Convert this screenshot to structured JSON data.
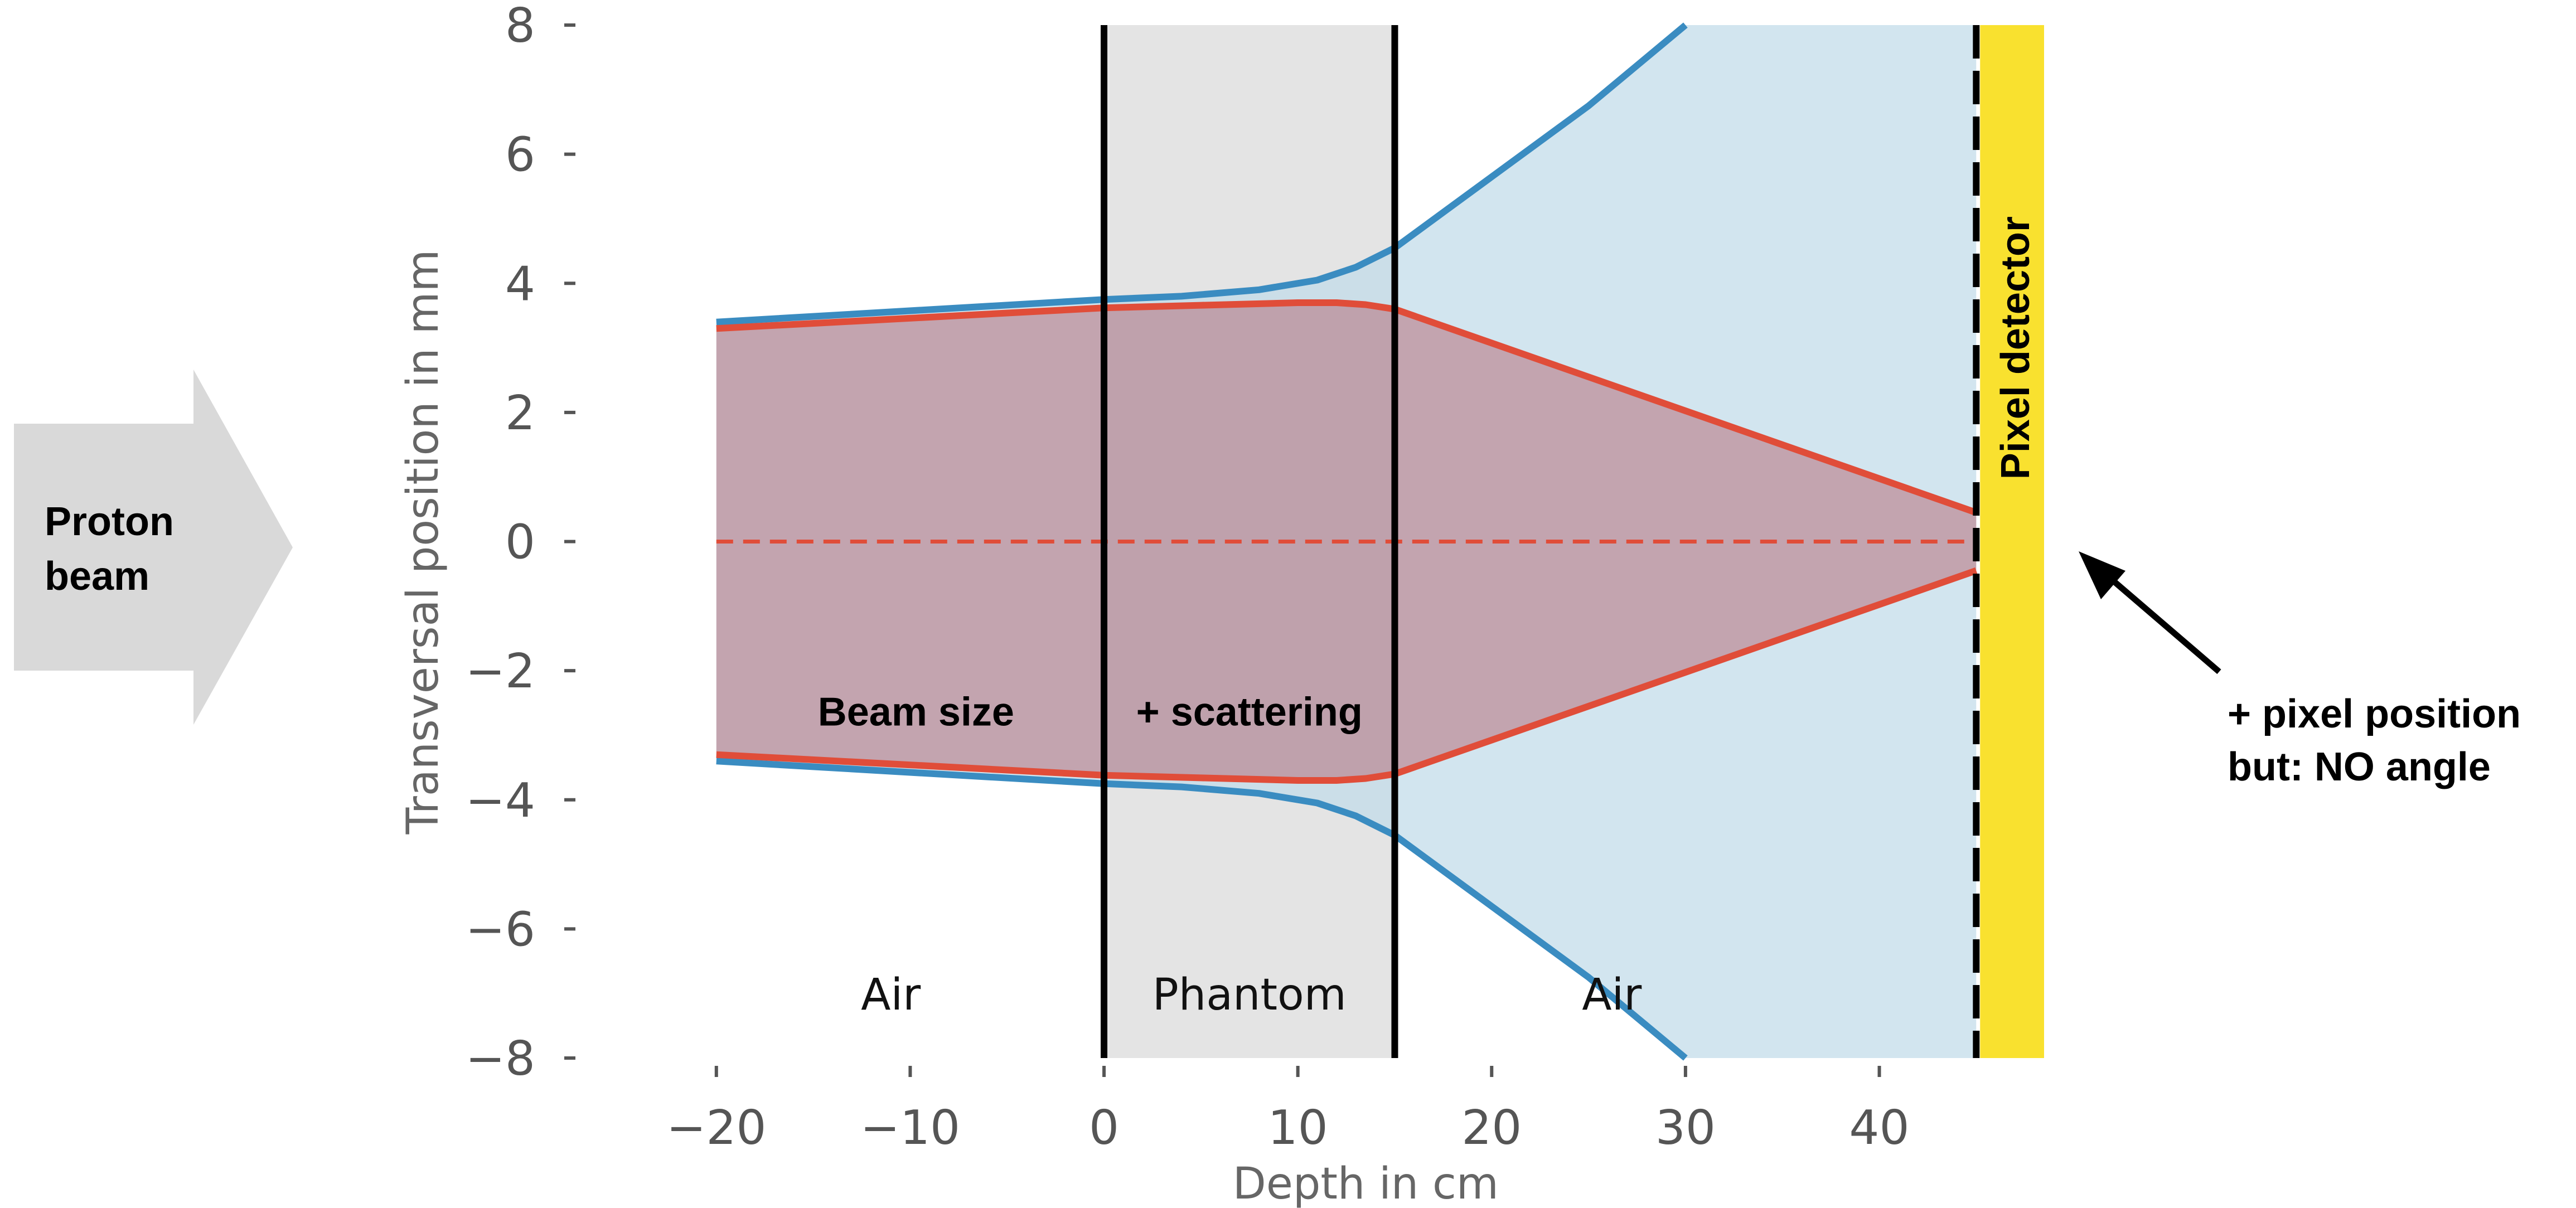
{
  "chart_data": {
    "type": "line",
    "xlabel": "Depth in cm",
    "ylabel": "Transversal position in mm",
    "xlim": [
      -23.8,
      48.5
    ],
    "ylim": [
      -8,
      8
    ],
    "xticks": [
      -20,
      -10,
      0,
      10,
      20,
      30,
      40
    ],
    "xtick_labels": [
      "−20",
      "−10",
      "0",
      "10",
      "20",
      "30",
      "40"
    ],
    "yticks": [
      8,
      6,
      4,
      2,
      0,
      -2,
      -4,
      -6,
      -8
    ],
    "ytick_labels": [
      "8",
      "6",
      "4",
      "2",
      "0",
      "−2",
      "−4",
      "−6",
      "−8"
    ],
    "grid": false,
    "colors": {
      "blue": "#3a8cc1",
      "blue_fill": "#c3dcea",
      "red": "#e04d39",
      "red_fill": "#c9a9ae",
      "phantom": "#e4e4e4",
      "detector": "#f9e12f",
      "arrow_bg": "#d9d9d9",
      "tick_text": "#555555"
    },
    "series": [
      {
        "name": "",
        "role": "outer-envelope",
        "color": "#3a8cc1",
        "upper": {
          "x": [
            -20,
            0,
            4,
            8,
            11,
            13,
            15,
            20,
            25,
            30
          ],
          "y": [
            3.4,
            3.75,
            3.8,
            3.9,
            4.05,
            4.25,
            4.55,
            5.65,
            6.75,
            8.0
          ]
        },
        "lower": {
          "x": [
            -20,
            0,
            4,
            8,
            11,
            13,
            15,
            20,
            25,
            30
          ],
          "y": [
            -3.4,
            -3.75,
            -3.8,
            -3.9,
            -4.05,
            -4.25,
            -4.55,
            -5.65,
            -6.75,
            -8.0
          ]
        }
      },
      {
        "name": "",
        "role": "inner-envelope",
        "color": "#e04d39",
        "upper": {
          "x": [
            -20,
            0,
            5,
            10,
            12,
            13.5,
            15,
            45
          ],
          "y": [
            3.3,
            3.62,
            3.66,
            3.7,
            3.7,
            3.67,
            3.6,
            0.45
          ]
        },
        "lower": {
          "x": [
            -20,
            0,
            5,
            10,
            12,
            13.5,
            15,
            45
          ],
          "y": [
            -3.3,
            -3.62,
            -3.66,
            -3.7,
            -3.7,
            -3.67,
            -3.6,
            -0.45
          ]
        }
      },
      {
        "name": "",
        "role": "centerline",
        "color": "#e04d39",
        "dashed": true,
        "x": [
          -20,
          45
        ],
        "y": [
          0,
          0
        ]
      }
    ],
    "regions": [
      {
        "type": "phantom",
        "x": [
          0,
          15
        ]
      },
      {
        "type": "detector",
        "x": [
          45.2,
          48.5
        ]
      }
    ],
    "boundary_lines": [
      0,
      15
    ],
    "detector_dashed_line": 45,
    "annotations": [
      {
        "text": "Beam size",
        "x": -9.7,
        "y": -2.85
      },
      {
        "text": "+ scattering",
        "x": 7.5,
        "y": -2.85
      },
      {
        "text": "Air",
        "x": -11,
        "y": -7.25
      },
      {
        "text": "Phantom",
        "x": 7.5,
        "y": -7.25
      },
      {
        "text": "Air",
        "x": 26.2,
        "y": -7.25
      },
      {
        "text": "Pixel detector",
        "x": 47,
        "y": 3.0
      }
    ]
  },
  "side_labels": {
    "proton_line1": "Proton",
    "proton_line2": "beam",
    "pixel_line1": "+ pixel position",
    "pixel_line2": "but: NO angle"
  }
}
